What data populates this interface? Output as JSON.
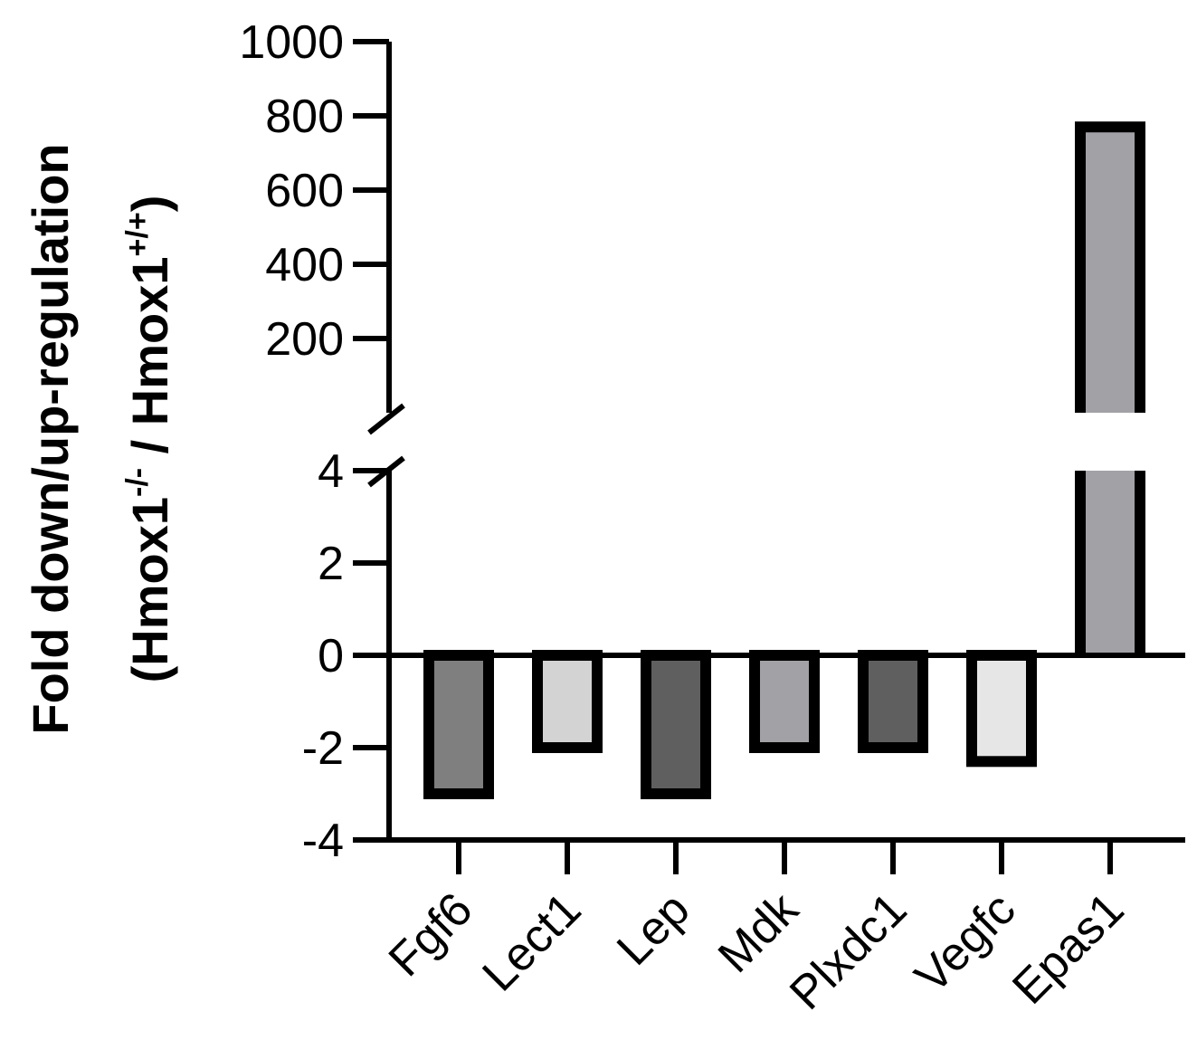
{
  "chart_data": {
    "type": "bar",
    "ylabel_line1": "Fold down/up-regulation",
    "ylabel_line2": {
      "open": "(Hmox1",
      "sup1": "-/-",
      "mid": " / Hmox1",
      "sup2": "+/+",
      "close": ")"
    },
    "xlabel": "",
    "title": "",
    "categories": [
      "Fgf6",
      "Lect1",
      "Lep",
      "Mdk",
      "Plxdc1",
      "Vegfc",
      "Epas1"
    ],
    "values": [
      -3,
      -2,
      -3,
      -2,
      -2,
      -2.3,
      770
    ],
    "bar_colors": [
      "#7f7f7f",
      "#d3d3d3",
      "#5f5f5f",
      "#a2a1a6",
      "#5f5f5f",
      "#e6e6e6",
      "#a2a1a6"
    ],
    "axis_break": {
      "lower_range": [
        -4,
        4
      ],
      "upper_range": [
        0,
        1000
      ]
    },
    "yticks_lower": [
      "-4",
      "-2",
      "0",
      "2",
      "4"
    ],
    "yticks_upper": [
      "200",
      "400",
      "600",
      "800",
      "1000"
    ],
    "ytick_values_lower": [
      -4,
      -2,
      0,
      2,
      4
    ],
    "ytick_values_upper": [
      200,
      400,
      600,
      800,
      1000
    ],
    "grid": false,
    "legend": "none"
  }
}
